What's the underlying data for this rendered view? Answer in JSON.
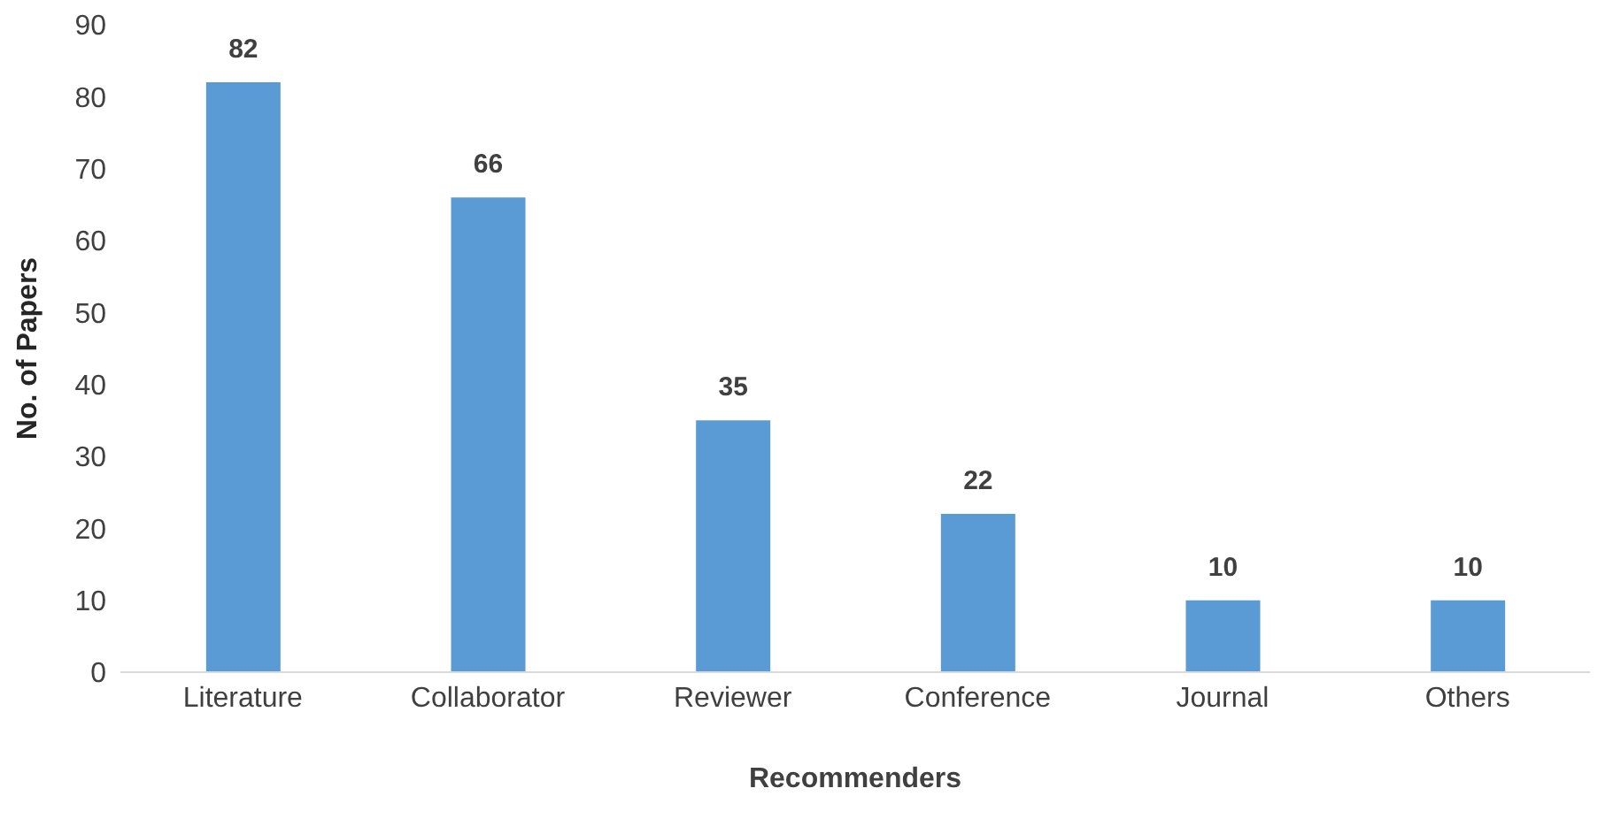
{
  "chart_data": {
    "type": "bar",
    "xlabel": "Recommenders",
    "ylabel": "No. of Papers",
    "categories": [
      "Literature",
      "Collaborator",
      "Reviewer",
      "Conference",
      "Journal",
      "Others"
    ],
    "values": [
      82,
      66,
      35,
      22,
      10,
      10
    ],
    "color": "#5b9bd5",
    "ylim": [
      0,
      90
    ],
    "yticks": [
      0,
      10,
      20,
      30,
      40,
      50,
      60,
      70,
      80,
      90
    ],
    "grid": false,
    "data_labels": true
  }
}
